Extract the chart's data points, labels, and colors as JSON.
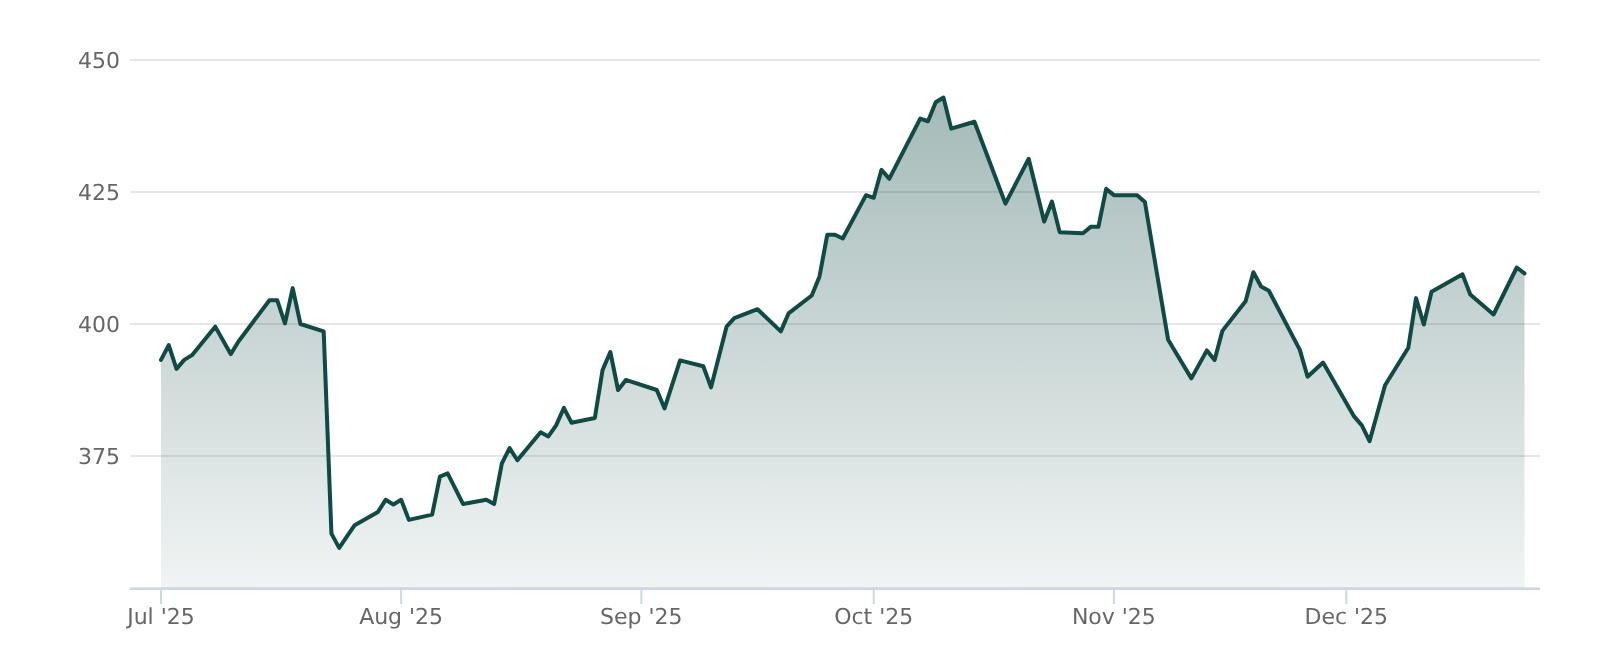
{
  "chart_data": {
    "type": "area",
    "x": [
      "2025-07-01",
      "2025-07-02",
      "2025-07-03",
      "2025-07-04",
      "2025-07-05",
      "2025-07-08",
      "2025-07-10",
      "2025-07-11",
      "2025-07-15",
      "2025-07-16",
      "2025-07-17",
      "2025-07-18",
      "2025-07-19",
      "2025-07-22",
      "2025-07-23",
      "2025-07-24",
      "2025-07-26",
      "2025-07-29",
      "2025-07-30",
      "2025-07-31",
      "2025-08-01",
      "2025-08-02",
      "2025-08-05",
      "2025-08-06",
      "2025-08-07",
      "2025-08-09",
      "2025-08-12",
      "2025-08-13",
      "2025-08-14",
      "2025-08-15",
      "2025-08-16",
      "2025-08-19",
      "2025-08-20",
      "2025-08-21",
      "2025-08-22",
      "2025-08-23",
      "2025-08-26",
      "2025-08-27",
      "2025-08-28",
      "2025-08-29",
      "2025-08-30",
      "2025-09-03",
      "2025-09-04",
      "2025-09-06",
      "2025-09-09",
      "2025-09-10",
      "2025-09-12",
      "2025-09-13",
      "2025-09-16",
      "2025-09-19",
      "2025-09-20",
      "2025-09-23",
      "2025-09-24",
      "2025-09-25",
      "2025-09-26",
      "2025-09-27",
      "2025-09-30",
      "2025-10-01",
      "2025-10-02",
      "2025-10-03",
      "2025-10-07",
      "2025-10-08",
      "2025-10-09",
      "2025-10-10",
      "2025-10-11",
      "2025-10-14",
      "2025-10-18",
      "2025-10-21",
      "2025-10-23",
      "2025-10-24",
      "2025-10-25",
      "2025-10-28",
      "2025-10-29",
      "2025-10-30",
      "2025-10-31",
      "2025-11-01",
      "2025-11-04",
      "2025-11-05",
      "2025-11-08",
      "2025-11-11",
      "2025-11-13",
      "2025-11-14",
      "2025-11-15",
      "2025-11-18",
      "2025-11-19",
      "2025-11-20",
      "2025-11-21",
      "2025-11-25",
      "2025-11-26",
      "2025-11-28",
      "2025-12-02",
      "2025-12-03",
      "2025-12-04",
      "2025-12-06",
      "2025-12-09",
      "2025-12-10",
      "2025-12-11",
      "2025-12-12",
      "2025-12-16",
      "2025-12-17",
      "2025-12-20",
      "2025-12-23",
      "2025-12-24"
    ],
    "series": [
      {
        "color": "#114a44",
        "values": [
          393.2,
          396.0,
          391.5,
          393.2,
          394.1,
          399.5,
          394.3,
          396.7,
          404.5,
          404.5,
          400.1,
          406.8,
          400.0,
          398.6,
          360.3,
          357.6,
          361.9,
          364.4,
          366.7,
          365.8,
          366.7,
          362.9,
          363.9,
          371.1,
          371.7,
          365.9,
          366.7,
          365.9,
          373.6,
          376.5,
          374.2,
          379.5,
          378.7,
          380.8,
          384.1,
          381.3,
          382.2,
          391.3,
          394.7,
          387.5,
          389.4,
          387.5,
          384.0,
          393.1,
          392.0,
          388.0,
          399.5,
          401.1,
          402.8,
          398.6,
          402.0,
          405.4,
          409.0,
          416.9,
          416.9,
          416.2,
          424.4,
          423.9,
          429.2,
          427.5,
          438.9,
          438.4,
          442.0,
          442.9,
          437.0,
          438.3,
          422.8,
          431.3,
          419.4,
          423.2,
          417.4,
          417.2,
          418.4,
          418.4,
          425.6,
          424.4,
          424.4,
          423.1,
          397.0,
          389.7,
          395.0,
          393.2,
          398.7,
          404.3,
          409.8,
          407.1,
          406.3,
          395.1,
          390.0,
          392.7,
          382.5,
          380.8,
          377.8,
          388.4,
          395.5,
          404.9,
          399.9,
          406.1,
          409.4,
          405.6,
          401.8,
          410.7,
          409.6
        ]
      }
    ],
    "xlim": [
      "2025-06-27",
      "2025-12-26"
    ],
    "xticks": [
      {
        "value": "2025-07-01",
        "label": "Jul '25"
      },
      {
        "value": "2025-08-01",
        "label": "Aug '25"
      },
      {
        "value": "2025-09-01",
        "label": "Sep '25"
      },
      {
        "value": "2025-10-01",
        "label": "Oct '25"
      },
      {
        "value": "2025-11-01",
        "label": "Nov '25"
      },
      {
        "value": "2025-12-01",
        "label": "Dec '25"
      }
    ],
    "ylim": [
      350,
      450
    ],
    "yticks": [
      {
        "value": 350,
        "label": null
      },
      375,
      400,
      425,
      450
    ],
    "grid": "y"
  }
}
